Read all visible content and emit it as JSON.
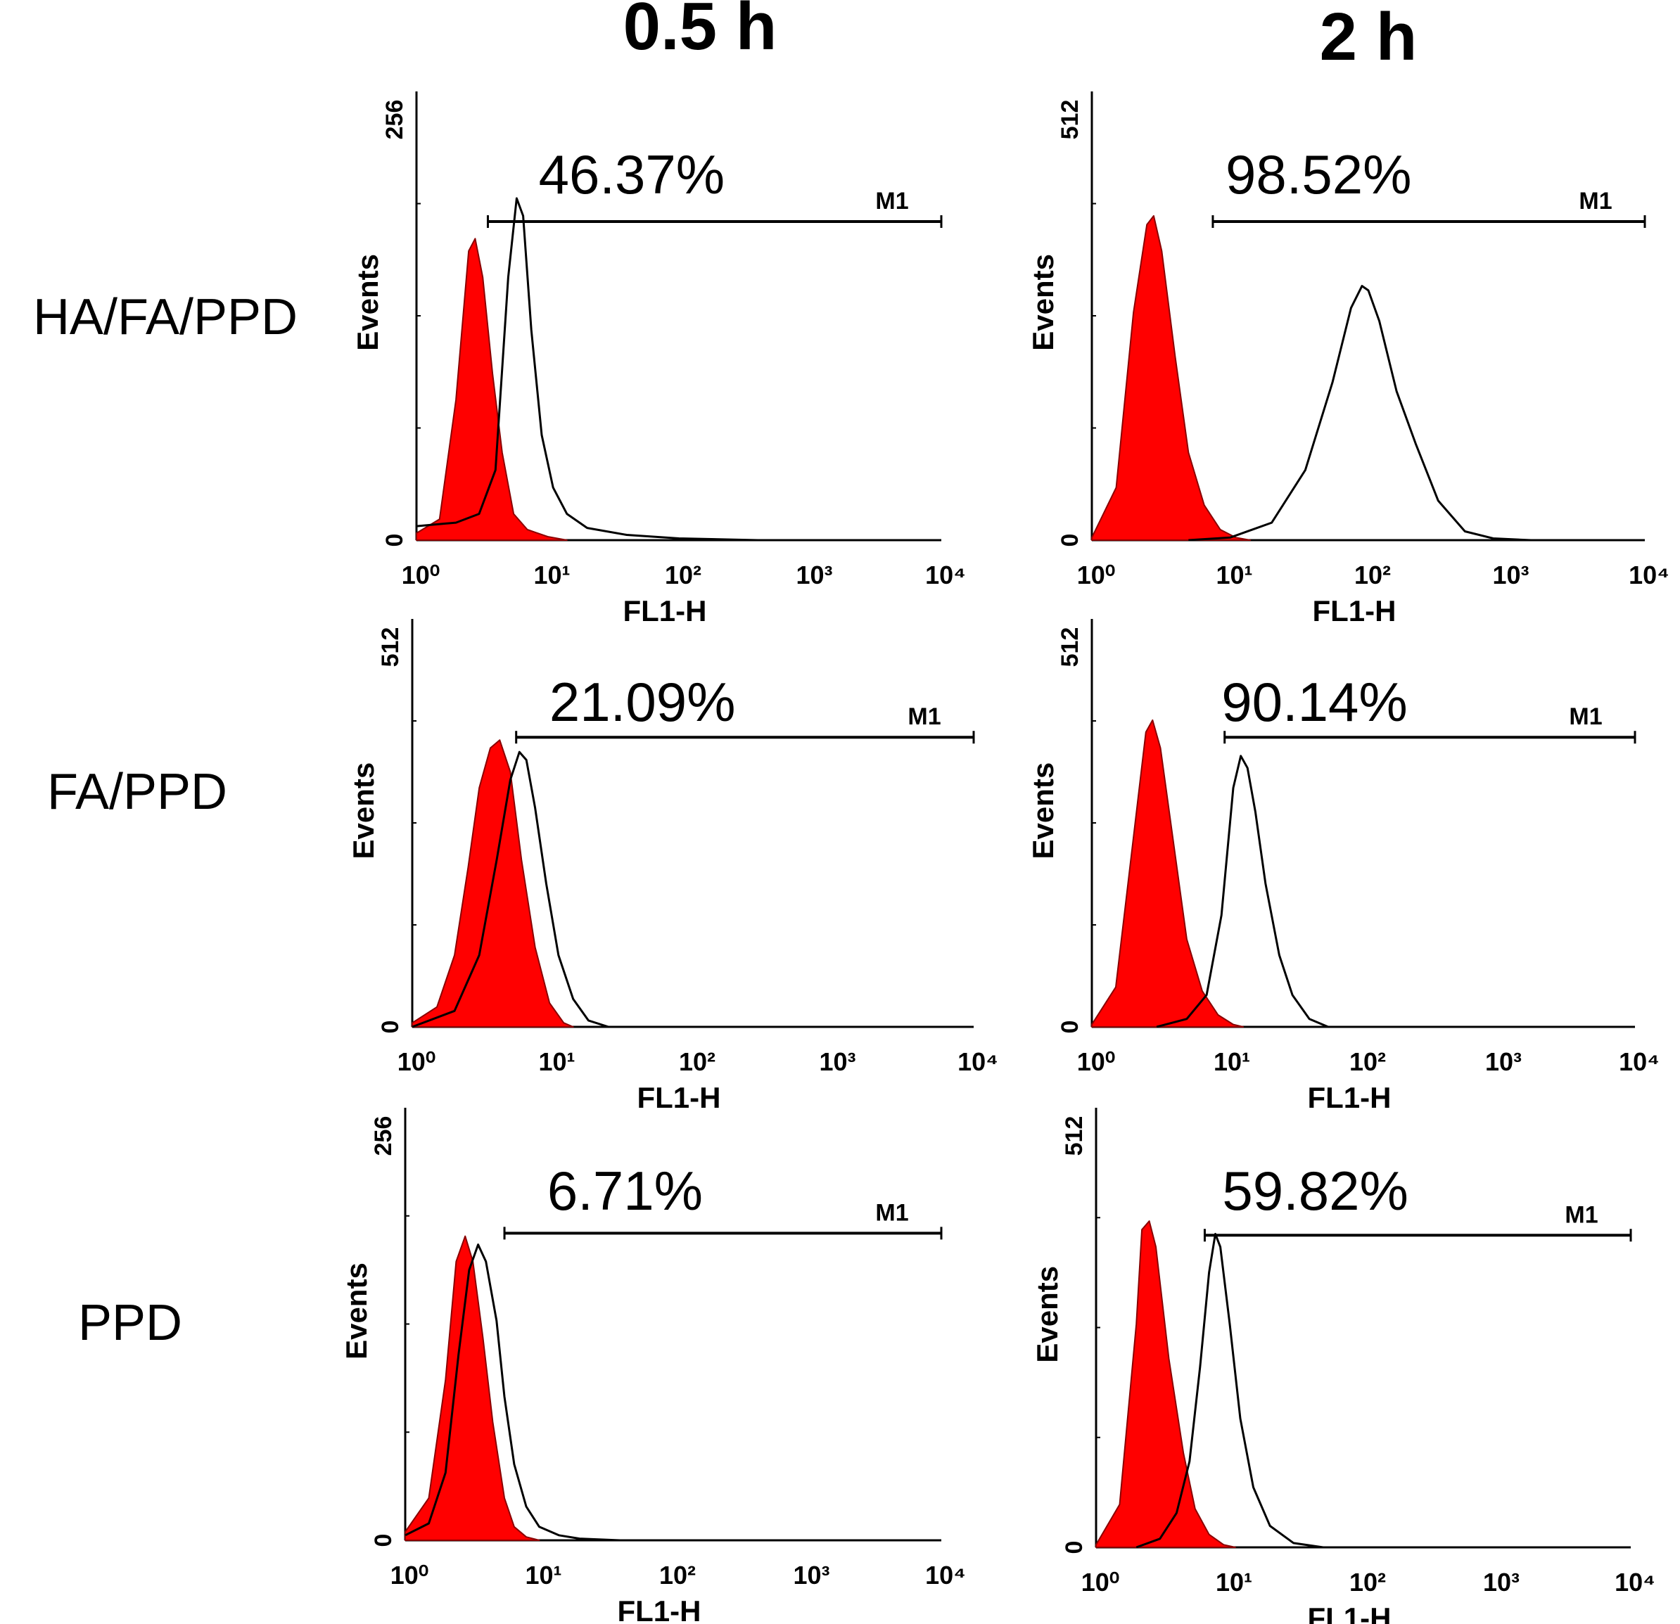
{
  "figure": {
    "columns": [
      "0.5 h",
      "2 h"
    ],
    "rows": [
      "HA/FA/PPD",
      "FA/PPD",
      "PPD"
    ],
    "control_fill_color": "#ff0000",
    "sample_line_color": "#000000"
  },
  "chart_data": [
    {
      "type": "area",
      "panel": "HA/FA/PPD 0.5 h",
      "row": 0,
      "col": 0,
      "xlabel": "FL1-H",
      "ylabel": "Events",
      "xscale": "log",
      "xlim": [
        1,
        10000
      ],
      "xticks": [
        "10⁰",
        "10¹",
        "10²",
        "10³",
        "10⁴"
      ],
      "ylim": [
        0,
        256
      ],
      "yticks": [
        "0",
        "256"
      ],
      "marker": {
        "label": "M1",
        "range": [
          3.5,
          10000
        ]
      },
      "percent": "46.37%",
      "series": [
        {
          "name": "control",
          "fill": true,
          "x": [
            1,
            1.5,
            2,
            2.5,
            2.8,
            3.2,
            3.8,
            4.5,
            5.5,
            7,
            10,
            14
          ],
          "y": [
            4,
            12,
            80,
            165,
            172,
            150,
            95,
            50,
            15,
            6,
            2,
            0
          ]
        },
        {
          "name": "sample",
          "fill": false,
          "x": [
            1,
            2,
            3,
            4,
            5,
            5.8,
            6.5,
            7.5,
            9,
            11,
            14,
            20,
            40,
            100,
            400,
            1000
          ],
          "y": [
            8,
            10,
            15,
            40,
            150,
            195,
            185,
            120,
            60,
            30,
            15,
            7,
            3,
            1,
            0,
            0
          ]
        }
      ]
    },
    {
      "type": "area",
      "panel": "HA/FA/PPD 2 h",
      "row": 0,
      "col": 1,
      "xlabel": "FL1-H",
      "ylabel": "Events",
      "xscale": "log",
      "xlim": [
        1,
        10000
      ],
      "xticks": [
        "10⁰",
        "10¹",
        "10²",
        "10³",
        "10⁴"
      ],
      "ylim": [
        0,
        512
      ],
      "yticks": [
        "0",
        "512"
      ],
      "marker": {
        "label": "M1",
        "range": [
          7.5,
          10000
        ]
      },
      "percent": "98.52%",
      "series": [
        {
          "name": "control",
          "fill": true,
          "x": [
            1,
            1.5,
            2,
            2.5,
            2.8,
            3.2,
            4,
            5,
            6.5,
            8.5,
            11,
            14
          ],
          "y": [
            3,
            60,
            260,
            360,
            370,
            330,
            210,
            100,
            40,
            12,
            3,
            0
          ]
        },
        {
          "name": "sample",
          "fill": false,
          "x": [
            5,
            10,
            20,
            35,
            55,
            75,
            90,
            100,
            120,
            160,
            220,
            320,
            500,
            800,
            1500
          ],
          "y": [
            0,
            3,
            20,
            80,
            180,
            265,
            290,
            285,
            250,
            170,
            110,
            45,
            10,
            2,
            0
          ]
        }
      ]
    },
    {
      "type": "area",
      "panel": "FA/PPD 0.5 h",
      "row": 1,
      "col": 0,
      "xlabel": "FL1-H",
      "ylabel": "Events",
      "xscale": "log",
      "xlim": [
        1,
        10000
      ],
      "xticks": [
        "10⁰",
        "10¹",
        "10²",
        "10³",
        "10⁴"
      ],
      "ylim": [
        0,
        512
      ],
      "yticks": [
        "0",
        "512"
      ],
      "marker": {
        "label": "M1",
        "range": [
          5.5,
          10000
        ]
      },
      "percent": "21.09%",
      "series": [
        {
          "name": "control",
          "fill": true,
          "x": [
            1,
            1.5,
            2,
            2.5,
            3,
            3.6,
            4.2,
            5,
            6,
            7.5,
            9.5,
            12,
            14
          ],
          "y": [
            5,
            25,
            90,
            200,
            300,
            350,
            360,
            320,
            210,
            100,
            30,
            5,
            0
          ]
        },
        {
          "name": "sample",
          "fill": false,
          "x": [
            1,
            2,
            3,
            4,
            5,
            5.8,
            6.5,
            7.5,
            9,
            11,
            14,
            18,
            25
          ],
          "y": [
            0,
            20,
            90,
            210,
            310,
            345,
            335,
            275,
            180,
            90,
            35,
            8,
            0
          ]
        }
      ]
    },
    {
      "type": "area",
      "panel": "FA/PPD 2 h",
      "row": 1,
      "col": 1,
      "xlabel": "FL1-H",
      "ylabel": "Events",
      "xscale": "log",
      "xlim": [
        1,
        10000
      ],
      "xticks": [
        "10⁰",
        "10¹",
        "10²",
        "10³",
        "10⁴"
      ],
      "ylim": [
        0,
        512
      ],
      "yticks": [
        "0",
        "512"
      ],
      "marker": {
        "label": "M1",
        "range": [
          9.5,
          10000
        ]
      },
      "percent": "90.14%",
      "series": [
        {
          "name": "control",
          "fill": true,
          "x": [
            1,
            1.5,
            2,
            2.5,
            2.8,
            3.2,
            4,
            5,
            6.5,
            8.5,
            11,
            13
          ],
          "y": [
            3,
            50,
            230,
            370,
            385,
            350,
            230,
            110,
            45,
            15,
            3,
            0
          ]
        },
        {
          "name": "sample",
          "fill": false,
          "x": [
            3,
            5,
            7,
            9,
            11,
            12.5,
            14,
            16,
            19,
            24,
            30,
            40,
            55
          ],
          "y": [
            0,
            10,
            40,
            140,
            300,
            340,
            325,
            270,
            180,
            90,
            40,
            10,
            0
          ]
        }
      ]
    },
    {
      "type": "area",
      "panel": "PPD 0.5 h",
      "row": 2,
      "col": 0,
      "xlabel": "FL1-H",
      "ylabel": "Events",
      "xscale": "log",
      "xlim": [
        1,
        10000
      ],
      "xticks": [
        "10⁰",
        "10¹",
        "10²",
        "10³",
        "10⁴"
      ],
      "ylim": [
        0,
        256
      ],
      "yticks": [
        "0",
        "256"
      ],
      "marker": {
        "label": "M1",
        "range": [
          5.5,
          10000
        ]
      },
      "percent": "6.71%",
      "series": [
        {
          "name": "control",
          "fill": true,
          "x": [
            1,
            1.5,
            2,
            2.4,
            2.8,
            3.2,
            3.8,
            4.5,
            5.5,
            6.5,
            8,
            10
          ],
          "y": [
            5,
            25,
            95,
            165,
            180,
            165,
            120,
            70,
            25,
            8,
            2,
            0
          ]
        },
        {
          "name": "sample",
          "fill": false,
          "x": [
            1,
            1.5,
            2,
            2.5,
            3,
            3.5,
            4,
            4.8,
            5.5,
            6.5,
            8,
            10,
            14,
            20,
            40
          ],
          "y": [
            3,
            10,
            40,
            110,
            160,
            175,
            165,
            130,
            85,
            45,
            20,
            8,
            3,
            1,
            0
          ]
        }
      ]
    },
    {
      "type": "area",
      "panel": "PPD 2 h",
      "row": 2,
      "col": 1,
      "xlabel": "FL1-H",
      "ylabel": "Events",
      "xscale": "log",
      "xlim": [
        1,
        10000
      ],
      "xticks": [
        "10⁰",
        "10¹",
        "10²",
        "10³",
        "10⁴"
      ],
      "ylim": [
        0,
        512
      ],
      "yticks": [
        "0",
        "512"
      ],
      "marker": {
        "label": "M1",
        "range": [
          6.5,
          10000
        ]
      },
      "percent": "59.82%",
      "series": [
        {
          "name": "control",
          "fill": true,
          "x": [
            1,
            1.5,
            2,
            2.2,
            2.5,
            2.8,
            3.5,
            4.5,
            5.5,
            7,
            9,
            11
          ],
          "y": [
            3,
            50,
            260,
            370,
            380,
            350,
            220,
            110,
            45,
            15,
            3,
            0
          ]
        },
        {
          "name": "sample",
          "fill": false,
          "x": [
            2,
            3,
            4,
            5,
            6,
            7,
            7.8,
            8.5,
            10,
            12,
            15,
            20,
            30,
            50
          ],
          "y": [
            0,
            10,
            40,
            100,
            210,
            320,
            365,
            350,
            260,
            150,
            70,
            25,
            5,
            0
          ]
        }
      ]
    }
  ]
}
